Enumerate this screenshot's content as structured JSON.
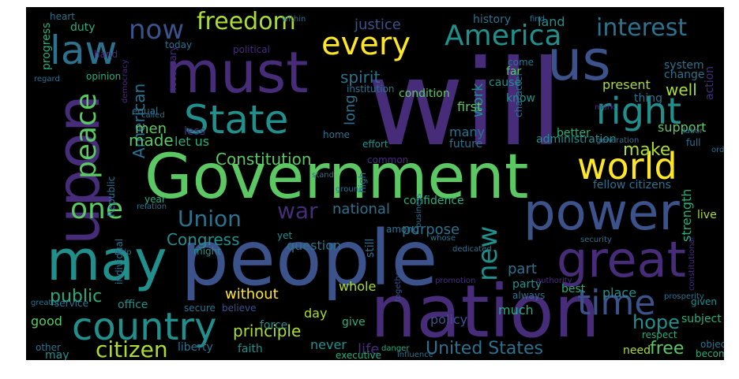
{
  "wordcloud": {
    "background_color": "#000000",
    "palette": [
      "#440154",
      "#472c7a",
      "#3b528b",
      "#2c728e",
      "#21908d",
      "#27ad81",
      "#5cc863",
      "#aadc32",
      "#fde725"
    ],
    "words": [
      {
        "text": "will",
        "color": "#472c7a"
      },
      {
        "text": "Government",
        "color": "#5cc863"
      },
      {
        "text": "people",
        "color": "#3b528b"
      },
      {
        "text": "nation",
        "color": "#472c7a"
      },
      {
        "text": "must",
        "color": "#472c7a"
      },
      {
        "text": "us",
        "color": "#3b528b"
      },
      {
        "text": "power",
        "color": "#3b528b"
      },
      {
        "text": "upon",
        "color": "#472c7a"
      },
      {
        "text": "may",
        "color": "#21908d"
      },
      {
        "text": "great",
        "color": "#472c7a"
      },
      {
        "text": "country",
        "color": "#21908d"
      },
      {
        "text": "State",
        "color": "#21908d"
      },
      {
        "text": "world",
        "color": "#fde725"
      },
      {
        "text": "right",
        "color": "#21908d"
      },
      {
        "text": "law",
        "color": "#2c728e"
      },
      {
        "text": "every",
        "color": "#fde725"
      },
      {
        "text": "America",
        "color": "#21908d"
      },
      {
        "text": "time",
        "color": "#3b528b"
      },
      {
        "text": "peace",
        "color": "#5cc863"
      },
      {
        "text": "one",
        "color": "#5cc863"
      },
      {
        "text": "freedom",
        "color": "#aadc32"
      },
      {
        "text": "interest",
        "color": "#2c728e"
      },
      {
        "text": "now",
        "color": "#3b528b"
      },
      {
        "text": "Union",
        "color": "#2c728e"
      },
      {
        "text": "citizen",
        "color": "#aadc32"
      },
      {
        "text": "new",
        "color": "#21908d"
      },
      {
        "text": "war",
        "color": "#472c7a"
      },
      {
        "text": "United States",
        "color": "#2c728e"
      },
      {
        "text": "principle",
        "color": "#aadc32"
      },
      {
        "text": "Constitution",
        "color": "#5cc863"
      },
      {
        "text": "American",
        "color": "#2c728e"
      },
      {
        "text": "hope",
        "color": "#21908d"
      },
      {
        "text": "free",
        "color": "#5cc863"
      },
      {
        "text": "make",
        "color": "#aadc32"
      },
      {
        "text": "public",
        "color": "#27ad81"
      },
      {
        "text": "Congress",
        "color": "#21908d"
      },
      {
        "text": "national",
        "color": "#2c728e"
      },
      {
        "text": "without",
        "color": "#fde725"
      },
      {
        "text": "purpose",
        "color": "#2c728e"
      },
      {
        "text": "question",
        "color": "#2c728e"
      },
      {
        "text": "well",
        "color": "#aadc32"
      },
      {
        "text": "spirit",
        "color": "#2c728e"
      },
      {
        "text": "justice",
        "color": "#3b528b"
      },
      {
        "text": "made",
        "color": "#5cc863"
      },
      {
        "text": "men",
        "color": "#5cc863"
      },
      {
        "text": "let us",
        "color": "#27ad81"
      },
      {
        "text": "part",
        "color": "#2c728e"
      },
      {
        "text": "party",
        "color": "#21908d"
      },
      {
        "text": "support",
        "color": "#5cc863"
      },
      {
        "text": "work",
        "color": "#21908d"
      },
      {
        "text": "long",
        "color": "#2c728e"
      },
      {
        "text": "many",
        "color": "#2c728e"
      },
      {
        "text": "future",
        "color": "#2c728e"
      },
      {
        "text": "present",
        "color": "#aadc32"
      },
      {
        "text": "system",
        "color": "#2c728e"
      },
      {
        "text": "history",
        "color": "#2c728e"
      },
      {
        "text": "land",
        "color": "#21908d"
      },
      {
        "text": "duty",
        "color": "#27ad81"
      },
      {
        "text": "today",
        "color": "#2c728e"
      },
      {
        "text": "first",
        "color": "#5cc863"
      },
      {
        "text": "know",
        "color": "#21908d"
      },
      {
        "text": "policy",
        "color": "#3b528b"
      },
      {
        "text": "whole",
        "color": "#aadc32"
      },
      {
        "text": "place",
        "color": "#21908d"
      },
      {
        "text": "best",
        "color": "#27ad81"
      },
      {
        "text": "live",
        "color": "#aadc32"
      },
      {
        "text": "strength",
        "color": "#27ad81"
      },
      {
        "text": "much",
        "color": "#27ad81"
      },
      {
        "text": "force",
        "color": "#21908d"
      },
      {
        "text": "day",
        "color": "#aadc32"
      },
      {
        "text": "good",
        "color": "#5cc863"
      },
      {
        "text": "office",
        "color": "#21908d"
      },
      {
        "text": "service",
        "color": "#2c728e"
      },
      {
        "text": "secure",
        "color": "#2c728e"
      },
      {
        "text": "believe",
        "color": "#3b528b"
      },
      {
        "text": "never",
        "color": "#21908d"
      },
      {
        "text": "life",
        "color": "#472c7a"
      },
      {
        "text": "liberty",
        "color": "#2c728e"
      },
      {
        "text": "faith",
        "color": "#21908d"
      },
      {
        "text": "need",
        "color": "#aadc32"
      },
      {
        "text": "give",
        "color": "#27ad81"
      },
      {
        "text": "confidence",
        "color": "#27ad81"
      },
      {
        "text": "fellow citizens",
        "color": "#2c728e"
      },
      {
        "text": "administration",
        "color": "#21908d"
      },
      {
        "text": "effort",
        "color": "#21908d"
      },
      {
        "text": "condition",
        "color": "#5cc863"
      },
      {
        "text": "progress",
        "color": "#27ad81"
      },
      {
        "text": "change",
        "color": "#2c728e"
      },
      {
        "text": "action",
        "color": "#472c7a"
      },
      {
        "text": "better",
        "color": "#27ad81"
      },
      {
        "text": "subject",
        "color": "#27ad81"
      },
      {
        "text": "year",
        "color": "#27ad81"
      },
      {
        "text": "cause",
        "color": "#21908d"
      },
      {
        "text": "far",
        "color": "#5cc863"
      },
      {
        "text": "come",
        "color": "#2c728e"
      },
      {
        "text": "thing",
        "color": "#2c728e"
      },
      {
        "text": "given",
        "color": "#21908d"
      },
      {
        "text": "Republic",
        "color": "#2c728e"
      },
      {
        "text": "less",
        "color": "#472c7a"
      },
      {
        "text": "high",
        "color": "#2c728e"
      },
      {
        "text": "still",
        "color": "#2c728e"
      },
      {
        "text": "yet",
        "color": "#21908d"
      },
      {
        "text": "might",
        "color": "#21908d"
      },
      {
        "text": "among",
        "color": "#2c728e"
      },
      {
        "text": "home",
        "color": "#2c728e"
      },
      {
        "text": "always",
        "color": "#2c728e"
      },
      {
        "text": "may",
        "color": "#21908d"
      },
      {
        "text": "other",
        "color": "#2c728e"
      },
      {
        "text": "hand",
        "color": "#472c7a"
      },
      {
        "text": "opinion",
        "color": "#27ad81"
      },
      {
        "text": "necessary",
        "color": "#472c7a"
      },
      {
        "text": "institution",
        "color": "#2c728e"
      },
      {
        "text": "equal",
        "color": "#2c728e"
      },
      {
        "text": "political",
        "color": "#472c7a"
      },
      {
        "text": "heart",
        "color": "#2c728e"
      },
      {
        "text": "within",
        "color": "#2c728e"
      },
      {
        "text": "individual",
        "color": "#2c728e"
      },
      {
        "text": "object",
        "color": "#2c728e"
      },
      {
        "text": "respect",
        "color": "#27ad81"
      },
      {
        "text": "become",
        "color": "#27ad81"
      },
      {
        "text": "executive",
        "color": "#27ad81"
      },
      {
        "text": "together",
        "color": "#3b528b"
      },
      {
        "text": "danger",
        "color": "#27ad81"
      },
      {
        "text": "character",
        "color": "#2c728e"
      },
      {
        "text": "promotion",
        "color": "#472c7a"
      },
      {
        "text": "common",
        "color": "#472c7a"
      },
      {
        "text": "stand",
        "color": "#2c728e"
      },
      {
        "text": "full",
        "color": "#2c728e"
      },
      {
        "text": "order",
        "color": "#2c728e"
      },
      {
        "text": "greater",
        "color": "#2c728e"
      },
      {
        "text": "mark",
        "color": "#472c7a"
      },
      {
        "text": "ground",
        "color": "#2c728e"
      },
      {
        "text": "help",
        "color": "#2c728e"
      },
      {
        "text": "authority",
        "color": "#472c7a"
      },
      {
        "text": "find",
        "color": "#2c728e"
      },
      {
        "text": "regard",
        "color": "#2c728e"
      },
      {
        "text": "business",
        "color": "#2c728e"
      },
      {
        "text": "security",
        "color": "#2c728e"
      },
      {
        "text": "generation",
        "color": "#2c728e"
      },
      {
        "text": "prosperity",
        "color": "#2c728e"
      },
      {
        "text": "whose",
        "color": "#2c728e"
      },
      {
        "text": "relation",
        "color": "#2c728e"
      },
      {
        "text": "constitutional",
        "color": "#472c7a"
      },
      {
        "text": "labor",
        "color": "#2c728e"
      },
      {
        "text": "democracy",
        "color": "#472c7a"
      },
      {
        "text": "called",
        "color": "#2c728e"
      },
      {
        "text": "influence",
        "color": "#2c728e"
      },
      {
        "text": "dedicated",
        "color": "#2c728e"
      }
    ]
  }
}
